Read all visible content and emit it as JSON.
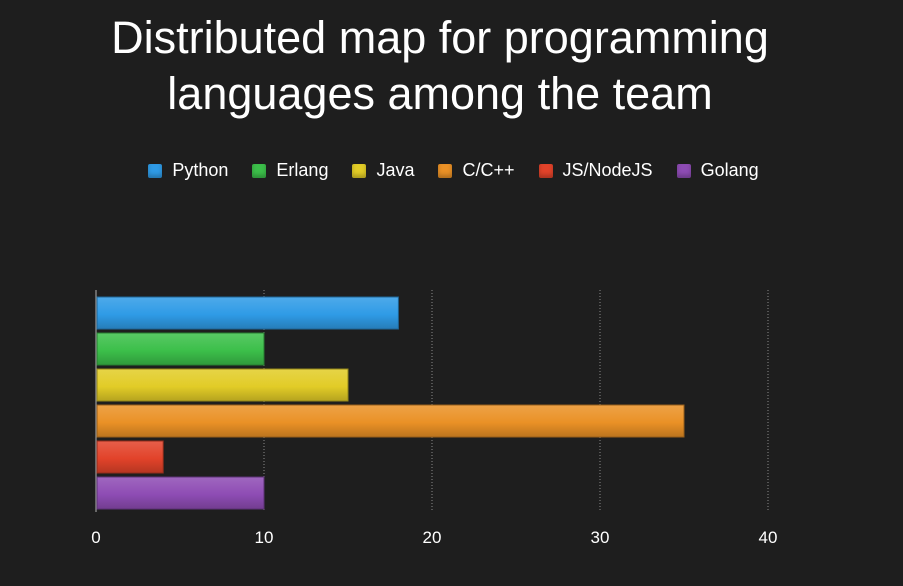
{
  "chart_data": {
    "type": "bar",
    "orientation": "horizontal",
    "title": [
      "Distributed map for programming",
      "languages among the team"
    ],
    "xlabel": "",
    "ylabel": "",
    "xlim": [
      0,
      40
    ],
    "xticks": [
      0,
      10,
      20,
      30,
      40
    ],
    "grid": true,
    "legend_position": "top",
    "series": [
      {
        "name": "Python",
        "value": 18,
        "color": "#2f9be6"
      },
      {
        "name": "Erlang",
        "value": 10,
        "color": "#3cbf4a"
      },
      {
        "name": "Java",
        "value": 15,
        "color": "#e2cc27"
      },
      {
        "name": "C/C++",
        "value": 35,
        "color": "#ea9126"
      },
      {
        "name": "JS/NodeJS",
        "value": 4,
        "color": "#e2432a"
      },
      {
        "name": "Golang",
        "value": 10,
        "color": "#8e4cb4"
      }
    ]
  }
}
